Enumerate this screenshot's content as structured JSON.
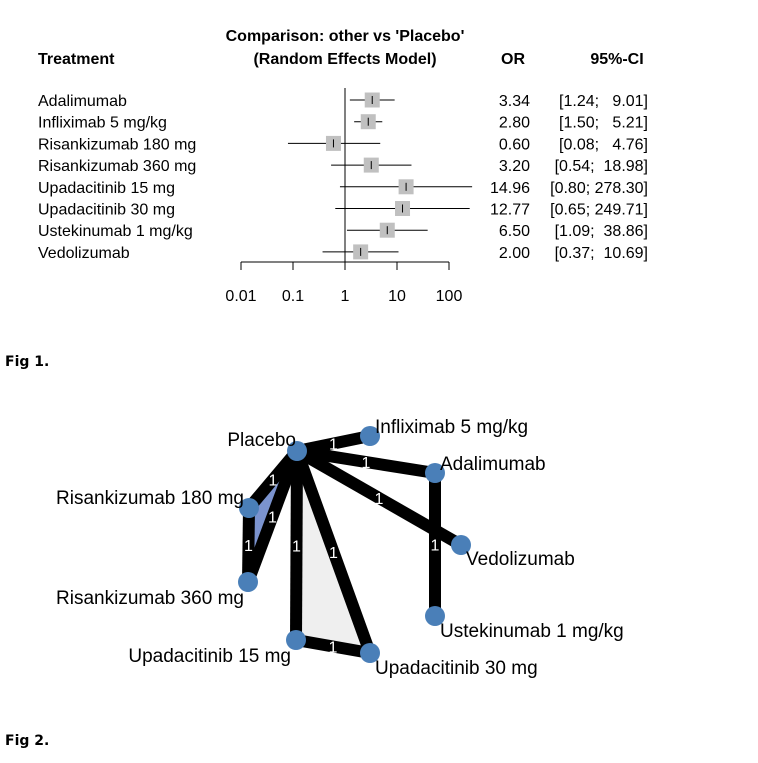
{
  "chart_data": [
    {
      "type": "forest",
      "title_line1": "Comparison: other vs 'Placebo'",
      "title_line2": "(Random Effects Model)",
      "column_headers": {
        "treatment": "Treatment",
        "or": "OR",
        "ci": "95%-CI"
      },
      "scale": "log",
      "xlim": [
        0.01,
        100
      ],
      "ticks": [
        0.01,
        0.1,
        1,
        10,
        100
      ],
      "tick_labels": [
        "0.01",
        "0.1",
        "1",
        "10",
        "100"
      ],
      "reference_line": 1,
      "rows": [
        {
          "treatment": "Adalimumab",
          "or": 3.34,
          "lower": 1.24,
          "upper": 9.01,
          "or_text": "3.34",
          "ci_text": "[1.24;   9.01]"
        },
        {
          "treatment": "Infliximab 5 mg/kg",
          "or": 2.8,
          "lower": 1.5,
          "upper": 5.21,
          "or_text": "2.80",
          "ci_text": "[1.50;   5.21]"
        },
        {
          "treatment": "Risankizumab 180 mg",
          "or": 0.6,
          "lower": 0.08,
          "upper": 4.76,
          "or_text": "0.60",
          "ci_text": "[0.08;   4.76]"
        },
        {
          "treatment": "Risankizumab 360 mg",
          "or": 3.2,
          "lower": 0.54,
          "upper": 18.98,
          "or_text": "3.20",
          "ci_text": "[0.54;  18.98]"
        },
        {
          "treatment": "Upadacitinib 15 mg",
          "or": 14.96,
          "lower": 0.8,
          "upper": 278.3,
          "or_text": "14.96",
          "ci_text": "[0.80; 278.30]"
        },
        {
          "treatment": "Upadacitinib 30 mg",
          "or": 12.77,
          "lower": 0.65,
          "upper": 249.71,
          "or_text": "12.77",
          "ci_text": "[0.65; 249.71]"
        },
        {
          "treatment": "Ustekinumab 1 mg/kg",
          "or": 6.5,
          "lower": 1.09,
          "upper": 38.86,
          "or_text": "6.50",
          "ci_text": "[1.09;  38.86]"
        },
        {
          "treatment": "Vedolizumab",
          "or": 2.0,
          "lower": 0.37,
          "upper": 10.69,
          "or_text": "2.00",
          "ci_text": "[0.37;  10.69]"
        }
      ],
      "colors": {
        "box": "#c0c0c0",
        "line": "#000000"
      }
    },
    {
      "type": "network",
      "nodes": [
        "Placebo",
        "Infliximab 5 mg/kg",
        "Adalimumab",
        "Risankizumab 180 mg",
        "Vedolizumab",
        "Risankizumab 360 mg",
        "Ustekinumab 1 mg/kg",
        "Upadacitinib 15 mg",
        "Upadacitinib 30 mg"
      ],
      "edges": [
        {
          "from": "Placebo",
          "to": "Infliximab 5 mg/kg",
          "label": "1"
        },
        {
          "from": "Placebo",
          "to": "Adalimumab",
          "label": "1"
        },
        {
          "from": "Placebo",
          "to": "Vedolizumab",
          "label": "1"
        },
        {
          "from": "Placebo",
          "to": "Risankizumab 180 mg",
          "label": "1"
        },
        {
          "from": "Placebo",
          "to": "Risankizumab 360 mg",
          "label": "1"
        },
        {
          "from": "Placebo",
          "to": "Upadacitinib 15 mg",
          "label": "1"
        },
        {
          "from": "Placebo",
          "to": "Upadacitinib 30 mg",
          "label": "1"
        },
        {
          "from": "Adalimumab",
          "to": "Ustekinumab 1 mg/kg",
          "label": "1"
        },
        {
          "from": "Risankizumab 180 mg",
          "to": "Risankizumab 360 mg",
          "label": "1"
        },
        {
          "from": "Upadacitinib 15 mg",
          "to": "Upadacitinib 30 mg",
          "label": "1"
        }
      ],
      "multi_arm_regions": [
        {
          "nodes": [
            "Placebo",
            "Risankizumab 180 mg",
            "Risankizumab 360 mg"
          ],
          "color": "#7b93cf"
        },
        {
          "nodes": [
            "Placebo",
            "Upadacitinib 15 mg",
            "Upadacitinib 30 mg"
          ],
          "color": "#efefef"
        }
      ],
      "colors": {
        "node": "#4a7fb8",
        "edge": "#000000",
        "edge_label": "#ffffff"
      }
    }
  ],
  "captions": {
    "fig1": "Fig 1.",
    "fig2": "Fig 2."
  }
}
